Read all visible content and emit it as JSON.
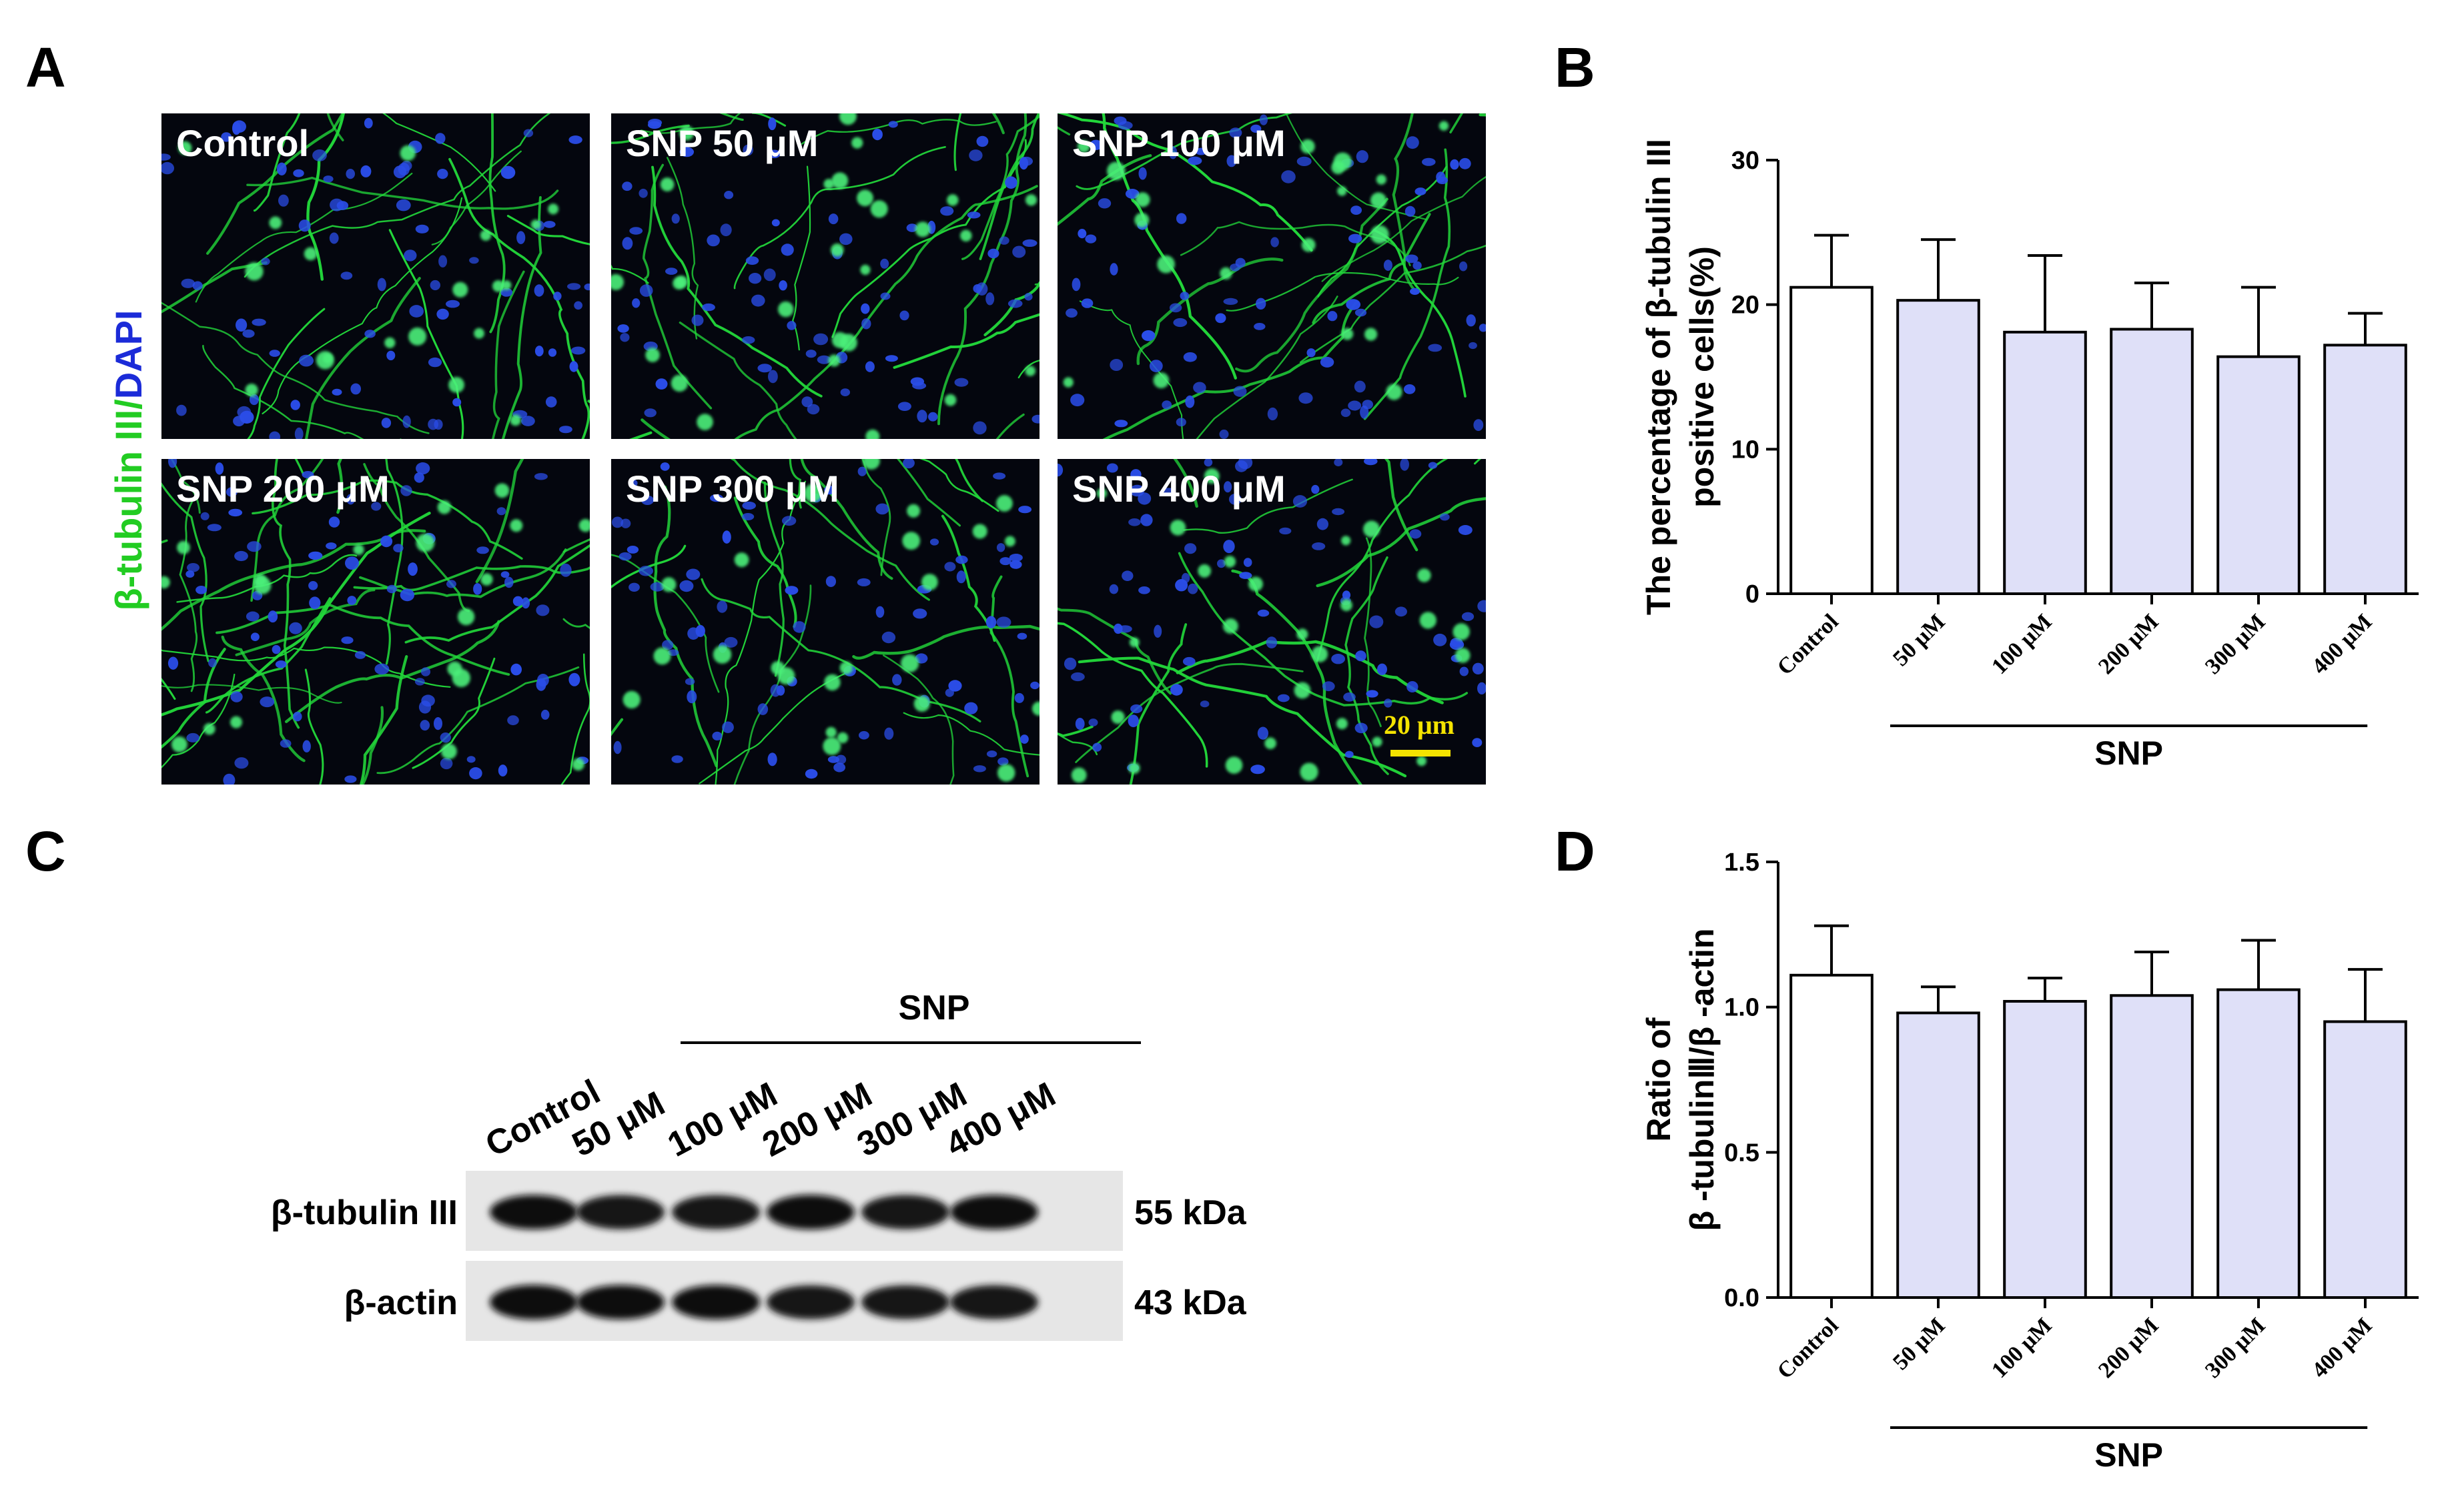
{
  "panels": {
    "a": {
      "letter": "A"
    },
    "b": {
      "letter": "B"
    },
    "c": {
      "letter": "C"
    },
    "d": {
      "letter": "D"
    }
  },
  "micrographs": {
    "stain_label_green": "β-tubulin III",
    "stain_label_sep": "/",
    "stain_label_blue": "DAPI",
    "labels": [
      "Control",
      "SNP 50 μM",
      "SNP 100 μM",
      "SNP 200 μM",
      "SNP 300 μM",
      "SNP 400 μM"
    ],
    "scale_bar_label": "20 μm",
    "colors": {
      "background": "#04060e",
      "neurite": "#22d63a",
      "nucleus": "#2a4de8",
      "scale_bar": "#f4e300"
    }
  },
  "blot": {
    "group_label": "SNP",
    "lanes": [
      "Control",
      "50 μM",
      "100 μM",
      "200 μM",
      "300 μM",
      "400 μM"
    ],
    "rows": [
      {
        "protein": "β-tubulin III",
        "size": "55 kDa",
        "band_intensity": [
          0.95,
          0.9,
          0.88,
          1.0,
          0.9,
          0.95
        ]
      },
      {
        "protein": "β-actin",
        "size": "43 kDa",
        "band_intensity": [
          1.0,
          0.95,
          0.95,
          0.85,
          0.85,
          0.88
        ]
      }
    ]
  },
  "chart_data": [
    {
      "type": "bar",
      "panel": "B",
      "categories": [
        "Control",
        "50 μM",
        "100 μM",
        "200 μM",
        "300 μM",
        "400 μM"
      ],
      "values": [
        21.2,
        20.3,
        18.1,
        18.3,
        16.4,
        17.2
      ],
      "error": [
        3.6,
        4.2,
        5.3,
        3.2,
        4.8,
        2.2
      ],
      "ylabel_line1": "The percentage of β-tubulin III",
      "ylabel_line2": "positive cells(%)",
      "ylim": [
        0,
        30
      ],
      "yticks": [
        "0",
        "10",
        "20",
        "30"
      ],
      "group_label": "SNP",
      "group_span": [
        "50 μM",
        "400 μM"
      ],
      "colors": {
        "control": "#ffffff",
        "treated": "#dfe0f8",
        "edge": "#000000"
      }
    },
    {
      "type": "bar",
      "panel": "D",
      "categories": [
        "Control",
        "50 μM",
        "100 μM",
        "200 μM",
        "300 μM",
        "400 μM"
      ],
      "values": [
        1.11,
        0.98,
        1.02,
        1.04,
        1.06,
        0.95
      ],
      "error": [
        0.17,
        0.09,
        0.08,
        0.15,
        0.17,
        0.18
      ],
      "ylabel_line1": "Ratio of",
      "ylabel_line2": "β -tubulinⅢ/β -actin",
      "ylim": [
        0,
        1.5
      ],
      "yticks": [
        "0.0",
        "0.5",
        "1.0",
        "1.5"
      ],
      "group_label": "SNP",
      "group_span": [
        "50 μM",
        "400 μM"
      ],
      "colors": {
        "control": "#ffffff",
        "treated": "#dfe0f8",
        "edge": "#000000"
      }
    }
  ]
}
